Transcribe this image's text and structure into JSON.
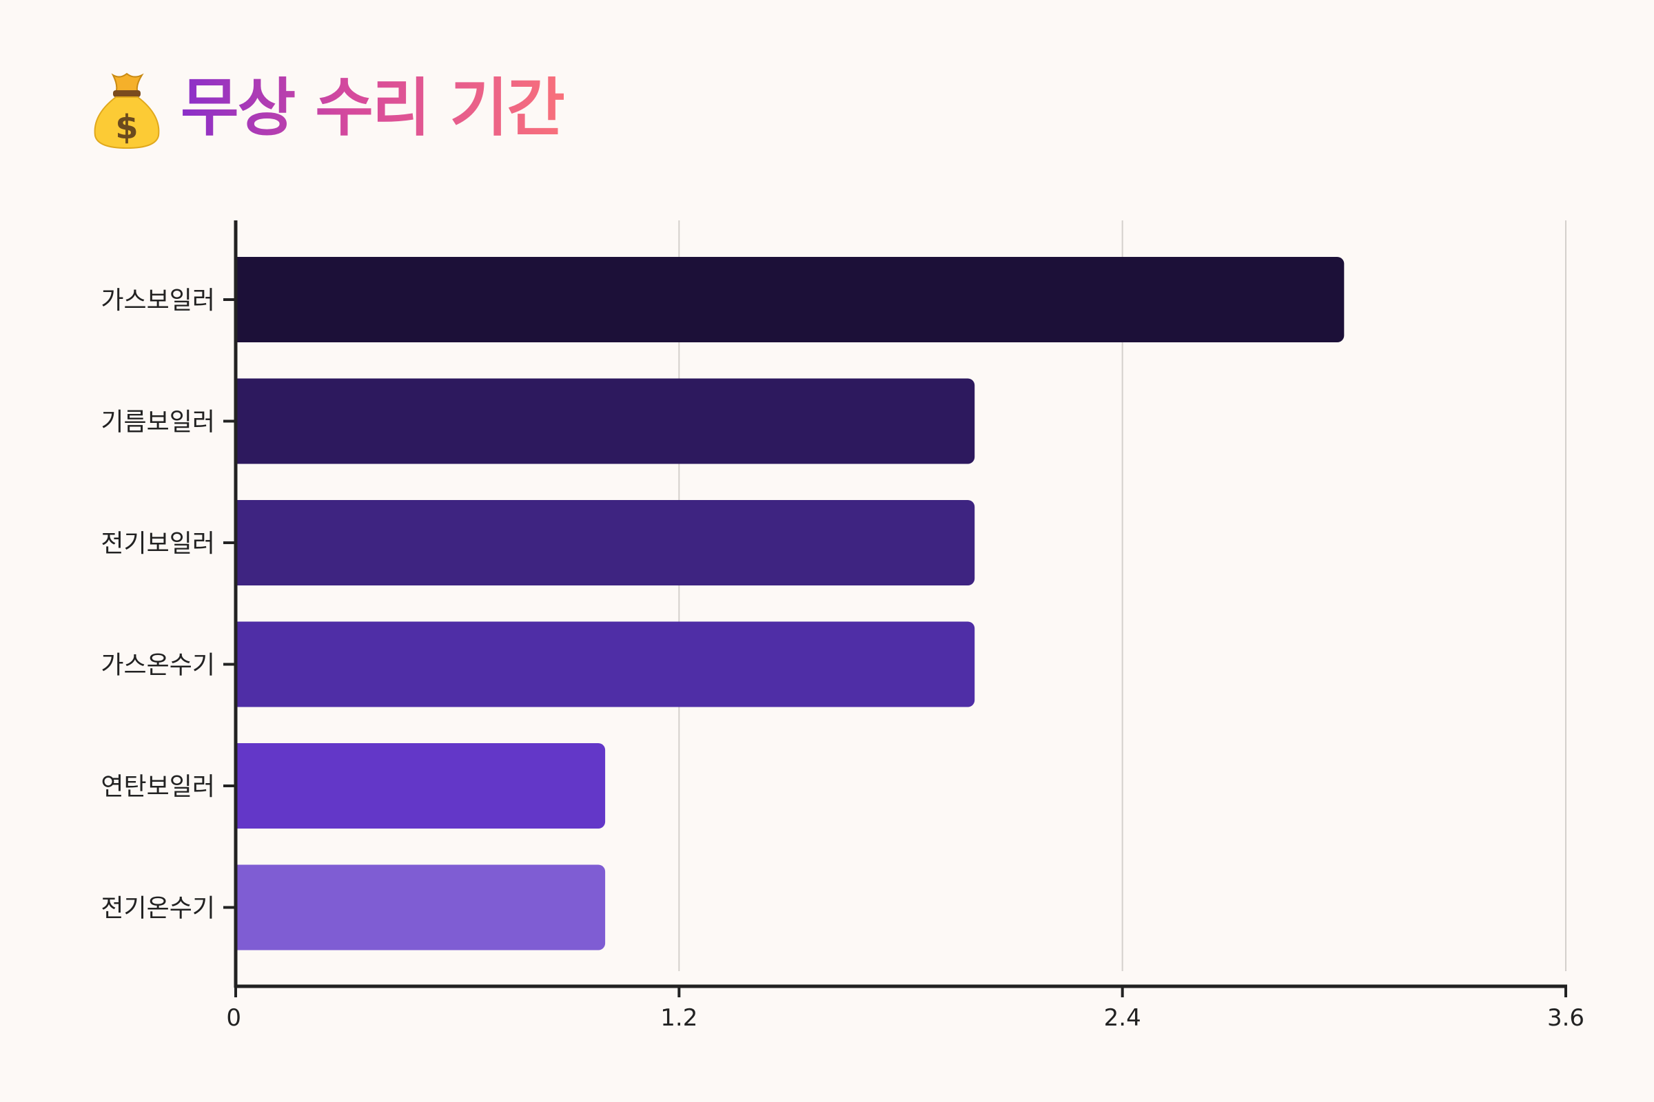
{
  "header": {
    "icon": "money-bag-icon",
    "title": "무상 수리 기간"
  },
  "chart_data": {
    "type": "bar",
    "orientation": "horizontal",
    "title": "무상 수리 기간",
    "categories": [
      "가스보일러",
      "기름보일러",
      "전기보일러",
      "가스온수기",
      "연탄보일러",
      "전기온수기"
    ],
    "values": [
      3,
      2,
      2,
      2,
      1,
      1
    ],
    "xlabel": "",
    "ylabel": "",
    "xlim": [
      0,
      3.6
    ],
    "xticks": [
      "0",
      "1.2",
      "2.4",
      "3.6"
    ],
    "grid": "vertical",
    "legend": "none",
    "colors": [
      "#1c1038",
      "#2d195e",
      "#3e2481",
      "#4f2ea6",
      "#6337c8",
      "#7f5dd3"
    ]
  },
  "colors": {
    "background": "#fdf9f6",
    "axis": "#222222",
    "grid": "#d4d0cc",
    "title_gradient": [
      "#8a2fc9",
      "#d64a9c",
      "#f8717b"
    ]
  }
}
